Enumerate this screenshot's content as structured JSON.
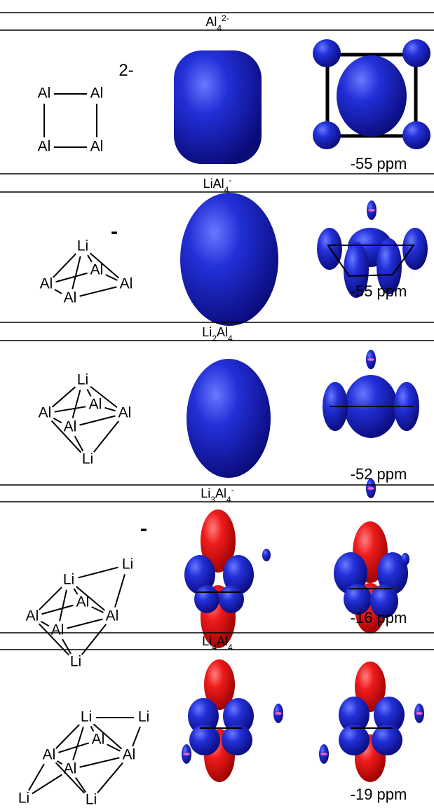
{
  "rows": [
    {
      "title": [
        {
          "text": "Al"
        },
        {
          "text": "4",
          "sub": true
        },
        {
          "text": "2-",
          "sup": true
        }
      ],
      "atoms": [
        "Al",
        "Al",
        "Al",
        "Al"
      ],
      "charge": "2-",
      "ppm": "-55 ppm"
    },
    {
      "title": [
        {
          "text": "LiAl"
        },
        {
          "text": "4",
          "sub": true
        },
        {
          "text": "-",
          "sup": true
        }
      ],
      "atoms": [
        "Li",
        "Al",
        "Al",
        "Al",
        "Al"
      ],
      "charge": "-",
      "ppm": "-55 ppm"
    },
    {
      "title": [
        {
          "text": "Li"
        },
        {
          "text": "2",
          "sub": true
        },
        {
          "text": "Al"
        },
        {
          "text": "4",
          "sub": true
        }
      ],
      "atoms": [
        "Li",
        "Al",
        "Al",
        "Al",
        "Al",
        "Li"
      ],
      "ppm": "-52 ppm"
    },
    {
      "title": [
        {
          "text": "Li"
        },
        {
          "text": "3",
          "sub": true
        },
        {
          "text": "Al"
        },
        {
          "text": "4",
          "sub": true
        },
        {
          "text": "-",
          "sup": true
        }
      ],
      "atoms": [
        "Li",
        "Li",
        "Al",
        "Al",
        "Al",
        "Al",
        "Li"
      ],
      "charge": "-",
      "ppm": "-16 ppm"
    },
    {
      "title": [
        {
          "text": "Li"
        },
        {
          "text": "4",
          "sub": true
        },
        {
          "text": "Al"
        },
        {
          "text": "4",
          "sub": true
        }
      ],
      "atoms": [
        "Li",
        "Li",
        "Al",
        "Al",
        "Al",
        "Al",
        "Li",
        "Li"
      ],
      "ppm": "-19 ppm"
    }
  ]
}
